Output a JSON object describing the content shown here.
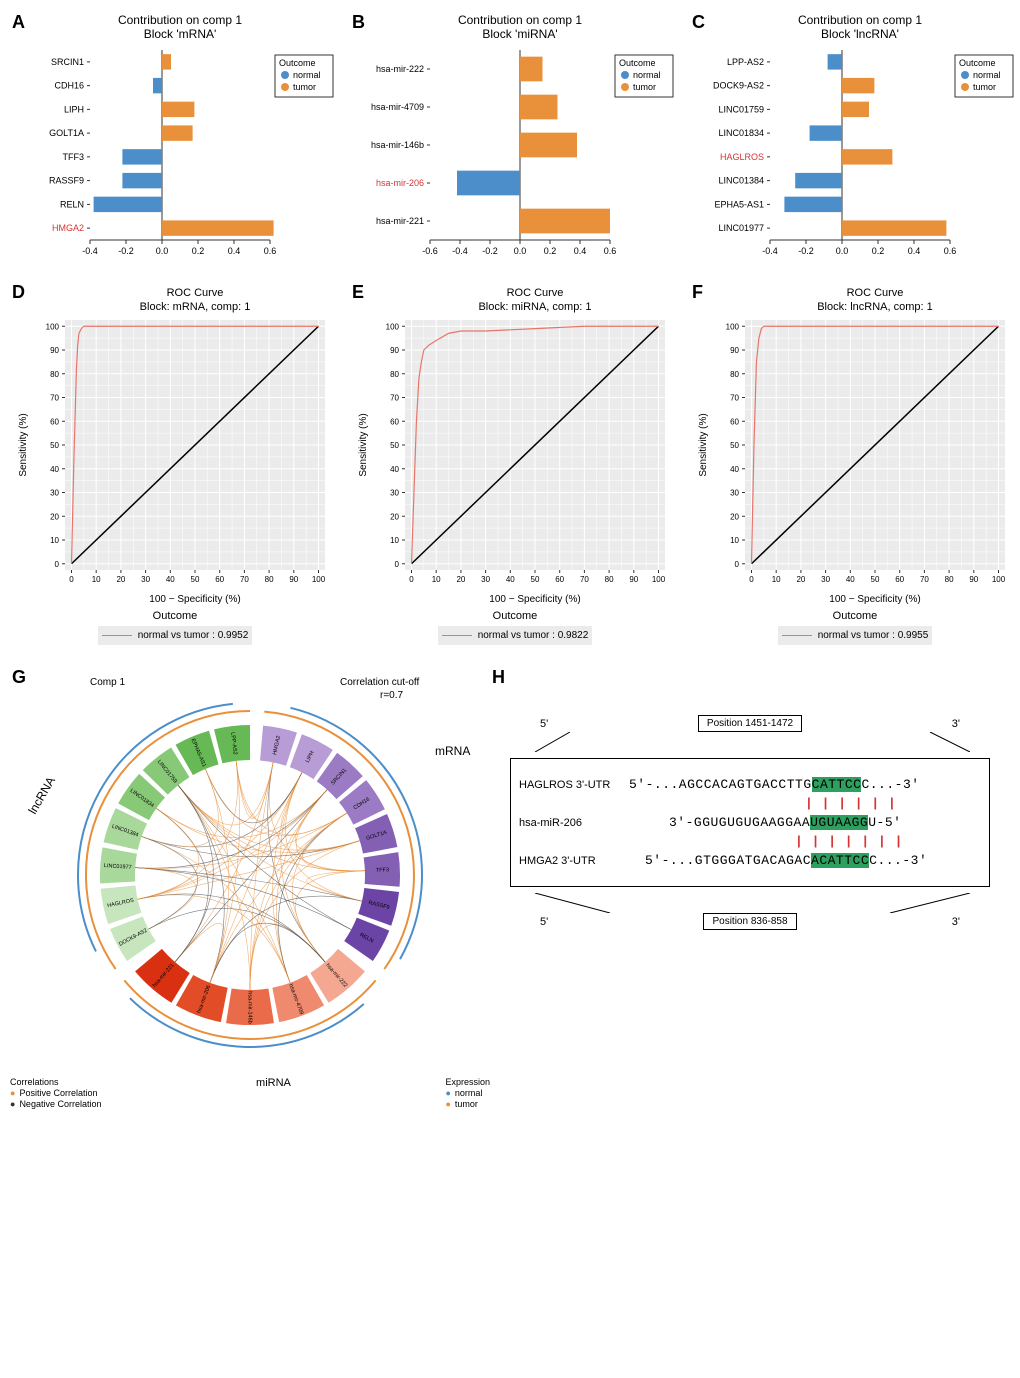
{
  "colors": {
    "normal": "#4b8ec9",
    "tumor": "#e8903a",
    "highlight_text": "#d63333",
    "roc_line": "#e8756b",
    "roc_diag": "#000000",
    "grid_bg": "#ebebeb",
    "grid_line": "#ffffff",
    "seq_highlight": "#2d9f5f"
  },
  "panelA": {
    "label": "A",
    "title1": "Contribution on comp 1",
    "title2": "Block 'mRNA'",
    "xlim": [
      -0.4,
      0.6
    ],
    "xticks": [
      -0.4,
      -0.2,
      0.0,
      0.2,
      0.4,
      0.6
    ],
    "items": [
      {
        "name": "SRCIN1",
        "value": 0.05,
        "outcome": "tumor",
        "highlight": false
      },
      {
        "name": "CDH16",
        "value": -0.05,
        "outcome": "normal",
        "highlight": false
      },
      {
        "name": "LIPH",
        "value": 0.18,
        "outcome": "tumor",
        "highlight": false
      },
      {
        "name": "GOLT1A",
        "value": 0.17,
        "outcome": "tumor",
        "highlight": false
      },
      {
        "name": "TFF3",
        "value": -0.22,
        "outcome": "normal",
        "highlight": false
      },
      {
        "name": "RASSF9",
        "value": -0.22,
        "outcome": "normal",
        "highlight": false
      },
      {
        "name": "RELN",
        "value": -0.38,
        "outcome": "normal",
        "highlight": false
      },
      {
        "name": "HMGA2",
        "value": 0.62,
        "outcome": "tumor",
        "highlight": true
      }
    ]
  },
  "panelB": {
    "label": "B",
    "title1": "Contribution on comp 1",
    "title2": "Block 'miRNA'",
    "xlim": [
      -0.6,
      0.6
    ],
    "xticks": [
      -0.6,
      -0.4,
      -0.2,
      0.0,
      0.2,
      0.4,
      0.6
    ],
    "items": [
      {
        "name": "hsa-mir-222",
        "value": 0.15,
        "outcome": "tumor",
        "highlight": false
      },
      {
        "name": "hsa-mir-4709",
        "value": 0.25,
        "outcome": "tumor",
        "highlight": false
      },
      {
        "name": "hsa-mir-146b",
        "value": 0.38,
        "outcome": "tumor",
        "highlight": false
      },
      {
        "name": "hsa-mir-206",
        "value": -0.42,
        "outcome": "normal",
        "highlight": true
      },
      {
        "name": "hsa-mir-221",
        "value": 0.6,
        "outcome": "tumor",
        "highlight": false
      }
    ]
  },
  "panelC": {
    "label": "C",
    "title1": "Contribution on comp 1",
    "title2": "Block 'lncRNA'",
    "xlim": [
      -0.4,
      0.6
    ],
    "xticks": [
      -0.4,
      -0.2,
      0.0,
      0.2,
      0.4,
      0.6
    ],
    "items": [
      {
        "name": "LPP-AS2",
        "value": -0.08,
        "outcome": "normal",
        "highlight": false
      },
      {
        "name": "DOCK9-AS2",
        "value": 0.18,
        "outcome": "tumor",
        "highlight": false
      },
      {
        "name": "LINC01759",
        "value": 0.15,
        "outcome": "tumor",
        "highlight": false
      },
      {
        "name": "LINC01834",
        "value": -0.18,
        "outcome": "normal",
        "highlight": false
      },
      {
        "name": "HAGLROS",
        "value": 0.28,
        "outcome": "tumor",
        "highlight": true
      },
      {
        "name": "LINC01384",
        "value": -0.26,
        "outcome": "normal",
        "highlight": false
      },
      {
        "name": "EPHA5-AS1",
        "value": -0.32,
        "outcome": "normal",
        "highlight": false
      },
      {
        "name": "LINC01977",
        "value": 0.58,
        "outcome": "tumor",
        "highlight": false
      }
    ]
  },
  "legend": {
    "title": "Outcome",
    "items": [
      {
        "label": "normal",
        "color": "#4b8ec9"
      },
      {
        "label": "tumor",
        "color": "#e8903a"
      }
    ]
  },
  "panelD": {
    "label": "D",
    "title1": "ROC Curve",
    "title2": "Block: mRNA, comp: 1",
    "xlabel": "100 − Specificity (%)",
    "ylabel": "Sensitivity (%)",
    "auc_text": "normal vs tumor : 0.9952",
    "outcome_label": "Outcome",
    "roc_points": [
      [
        0,
        0
      ],
      [
        1,
        45
      ],
      [
        2,
        82
      ],
      [
        2.5,
        92
      ],
      [
        3,
        97
      ],
      [
        4,
        99
      ],
      [
        5,
        100
      ],
      [
        100,
        100
      ]
    ]
  },
  "panelE": {
    "label": "E",
    "title1": "ROC Curve",
    "title2": "Block: miRNA, comp: 1",
    "xlabel": "100 − Specificity (%)",
    "ylabel": "Sensitivity (%)",
    "auc_text": "normal vs tumor : 0.9822",
    "outcome_label": "Outcome",
    "roc_points": [
      [
        0,
        0
      ],
      [
        1,
        30
      ],
      [
        2,
        60
      ],
      [
        3,
        78
      ],
      [
        4,
        85
      ],
      [
        5,
        90
      ],
      [
        7,
        92
      ],
      [
        10,
        94
      ],
      [
        15,
        97
      ],
      [
        20,
        98
      ],
      [
        30,
        98
      ],
      [
        50,
        99
      ],
      [
        70,
        100
      ],
      [
        100,
        100
      ]
    ]
  },
  "panelF": {
    "label": "F",
    "title1": "ROC Curve",
    "title2": "Block: lncRNA, comp: 1",
    "xlabel": "100 − Specificity (%)",
    "ylabel": "Sensitivity (%)",
    "auc_text": "normal vs tumor : 0.9955",
    "outcome_label": "Outcome",
    "roc_points": [
      [
        0,
        0
      ],
      [
        1,
        50
      ],
      [
        2,
        85
      ],
      [
        3,
        95
      ],
      [
        4,
        99
      ],
      [
        5,
        100
      ],
      [
        100,
        100
      ]
    ]
  },
  "panelG": {
    "label": "G",
    "comp_label": "Comp 1",
    "cutoff_label": "Correlation cut-off",
    "cutoff_value": "r=0.7",
    "sections": {
      "mRNA": {
        "label": "mRNA",
        "items": [
          "HMGA2",
          "LIPH",
          "SRCIN1",
          "CDH16",
          "GOLT1A",
          "TFF3",
          "RASSF9",
          "RELN"
        ],
        "colors": [
          "#b79cd6",
          "#b79cd6",
          "#9b7bc4",
          "#9b7bc4",
          "#8460b5",
          "#8460b5",
          "#6c44a6",
          "#6c44a6"
        ]
      },
      "miRNA": {
        "label": "miRNA",
        "items": [
          "hsa-mir-222",
          "hsa-mir-4709",
          "hsa-mir-146b",
          "hsa-mir-206",
          "hsa-mir-221"
        ],
        "colors": [
          "#f4a892",
          "#f08a6e",
          "#ea6b4a",
          "#e24d28",
          "#d83010"
        ]
      },
      "lncRNA": {
        "label": "lncRNA",
        "items": [
          "DOCK9-AS2",
          "HAGLROS",
          "LINC01977",
          "LINC01384",
          "LINC01834",
          "LINC01759",
          "EPHA5-AS1",
          "LPP-AS2"
        ],
        "colors": [
          "#c7e6bd",
          "#c7e6bd",
          "#a9d89b",
          "#a9d89b",
          "#88c978",
          "#88c978",
          "#66b955",
          "#66b955"
        ]
      }
    },
    "corr_legend": {
      "title": "Correlations",
      "items": [
        "Positive Correlation",
        "Negative Correlation"
      ]
    },
    "expr_legend": {
      "title": "Expression",
      "items": [
        {
          "label": "normal",
          "color": "#4b8ec9"
        },
        {
          "label": "tumor",
          "color": "#e8903a"
        }
      ]
    }
  },
  "panelH": {
    "label": "H",
    "top_pos": "Position 1451-1472",
    "bottom_pos": "Position 836-858",
    "five_prime": "5'",
    "three_prime": "3'",
    "rows": [
      {
        "label": "HAGLROS 3'-UTR",
        "pre": "5'-...AGCCACAGTGACCTTG",
        "hl": "CATTCC",
        "post": "C...-3'"
      },
      {
        "label": "hsa-miR-206",
        "pre": "3'-GGUGUGUGAAGGAA",
        "hl": "UGUAAGG",
        "post": "U-5'"
      },
      {
        "label": "HMGA2 3'-UTR",
        "pre": "5'-...GTGGGATGACAGAC",
        "hl": "ACATTCC",
        "post": "C...-3'"
      }
    ]
  }
}
